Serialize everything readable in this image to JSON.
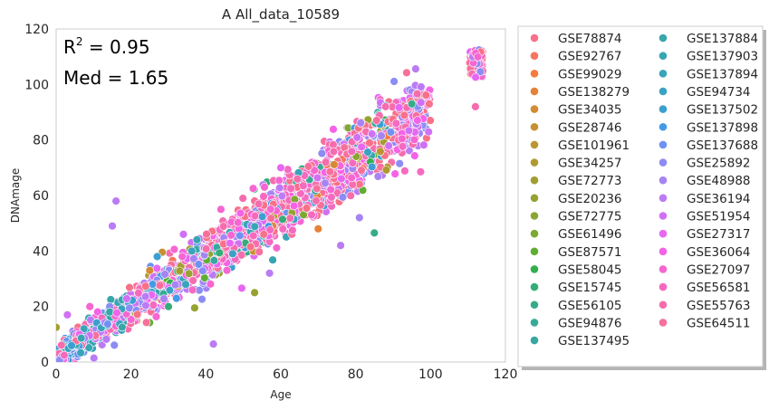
{
  "chart_data": {
    "type": "scatter",
    "title": "A  All_data_10589",
    "xlabel": "Age",
    "ylabel": "DNAmage",
    "xlim": [
      0,
      120
    ],
    "ylim": [
      0,
      120
    ],
    "xticks": [
      0,
      20,
      40,
      60,
      80,
      100,
      120
    ],
    "yticks": [
      0,
      20,
      40,
      60,
      80,
      100,
      120
    ],
    "grid": false,
    "legend_position": "outside-right",
    "annotations": [
      {
        "base": "R",
        "sup": "2",
        "text": " = 0.95"
      },
      {
        "text": "Med = 1.65"
      }
    ],
    "series": [
      {
        "name": "GSE78874",
        "color": "#f77189"
      },
      {
        "name": "GSE92767",
        "color": "#f7745f"
      },
      {
        "name": "GSE99029",
        "color": "#f77a3d"
      },
      {
        "name": "GSE138279",
        "color": "#e5823a"
      },
      {
        "name": "GSE34035",
        "color": "#d58b32"
      },
      {
        "name": "GSE28746",
        "color": "#c79132"
      },
      {
        "name": "GSE101961",
        "color": "#ba9532"
      },
      {
        "name": "GSE34257",
        "color": "#ae9a31"
      },
      {
        "name": "GSE72773",
        "color": "#a29e31"
      },
      {
        "name": "GSE20236",
        "color": "#97a231"
      },
      {
        "name": "GSE72775",
        "color": "#8ba531"
      },
      {
        "name": "GSE61496",
        "color": "#7ba931"
      },
      {
        "name": "GSE87571",
        "color": "#5fae31"
      },
      {
        "name": "GSE58045",
        "color": "#33b04e"
      },
      {
        "name": "GSE15745",
        "color": "#35ad77"
      },
      {
        "name": "GSE56105",
        "color": "#36ab8a"
      },
      {
        "name": "GSE94876",
        "color": "#36aa96"
      },
      {
        "name": "GSE137495",
        "color": "#37a8a0"
      },
      {
        "name": "GSE137884",
        "color": "#37a7a9"
      },
      {
        "name": "GSE137903",
        "color": "#38a6b2"
      },
      {
        "name": "GSE137894",
        "color": "#39a4ba"
      },
      {
        "name": "GSE94734",
        "color": "#3aa2c4"
      },
      {
        "name": "GSE137502",
        "color": "#3c9fd1"
      },
      {
        "name": "GSE137898",
        "color": "#449ae6"
      },
      {
        "name": "GSE137688",
        "color": "#6f92f2"
      },
      {
        "name": "GSE25892",
        "color": "#8c8cf4"
      },
      {
        "name": "GSE48988",
        "color": "#a584f4"
      },
      {
        "name": "GSE36194",
        "color": "#bb7bf4"
      },
      {
        "name": "GSE51954",
        "color": "#d071f4"
      },
      {
        "name": "GSE27317",
        "color": "#e767f3"
      },
      {
        "name": "GSE36064",
        "color": "#f462e6"
      },
      {
        "name": "GSE27097",
        "color": "#f566d1"
      },
      {
        "name": "GSE56581",
        "color": "#f56abf"
      },
      {
        "name": "GSE55763",
        "color": "#f56dad"
      },
      {
        "name": "GSE64511",
        "color": "#f6709b"
      }
    ],
    "points": [
      {
        "x": 0,
        "y": 12.5,
        "s": 8
      },
      {
        "x": 3,
        "y": 17,
        "s": 28
      },
      {
        "x": 15,
        "y": 49,
        "s": 27
      },
      {
        "x": 16,
        "y": 58,
        "s": 27
      },
      {
        "x": 9,
        "y": 20,
        "s": 31
      },
      {
        "x": 42,
        "y": 6.5,
        "s": 27
      },
      {
        "x": 37,
        "y": 19.5,
        "s": 9
      },
      {
        "x": 25,
        "y": 33,
        "s": 4
      },
      {
        "x": 76,
        "y": 42,
        "s": 27
      },
      {
        "x": 81,
        "y": 52,
        "s": 26
      },
      {
        "x": 85,
        "y": 46.5,
        "s": 15
      },
      {
        "x": 112,
        "y": 92,
        "s": 33
      },
      {
        "x": 57,
        "y": 32,
        "s": 27
      },
      {
        "x": 34,
        "y": 46,
        "s": 28
      },
      {
        "x": 30,
        "y": 20,
        "s": 14
      },
      {
        "x": 27,
        "y": 38,
        "s": 22
      },
      {
        "x": 44,
        "y": 55,
        "s": 31
      },
      {
        "x": 53,
        "y": 25,
        "s": 9
      },
      {
        "x": 95,
        "y": 93,
        "s": 15
      },
      {
        "x": 70,
        "y": 48,
        "s": 3
      },
      {
        "x": 72,
        "y": 72,
        "s": 33
      },
      {
        "x": 60,
        "y": 70,
        "s": 29
      },
      {
        "x": 88,
        "y": 92,
        "s": 33
      }
    ]
  }
}
